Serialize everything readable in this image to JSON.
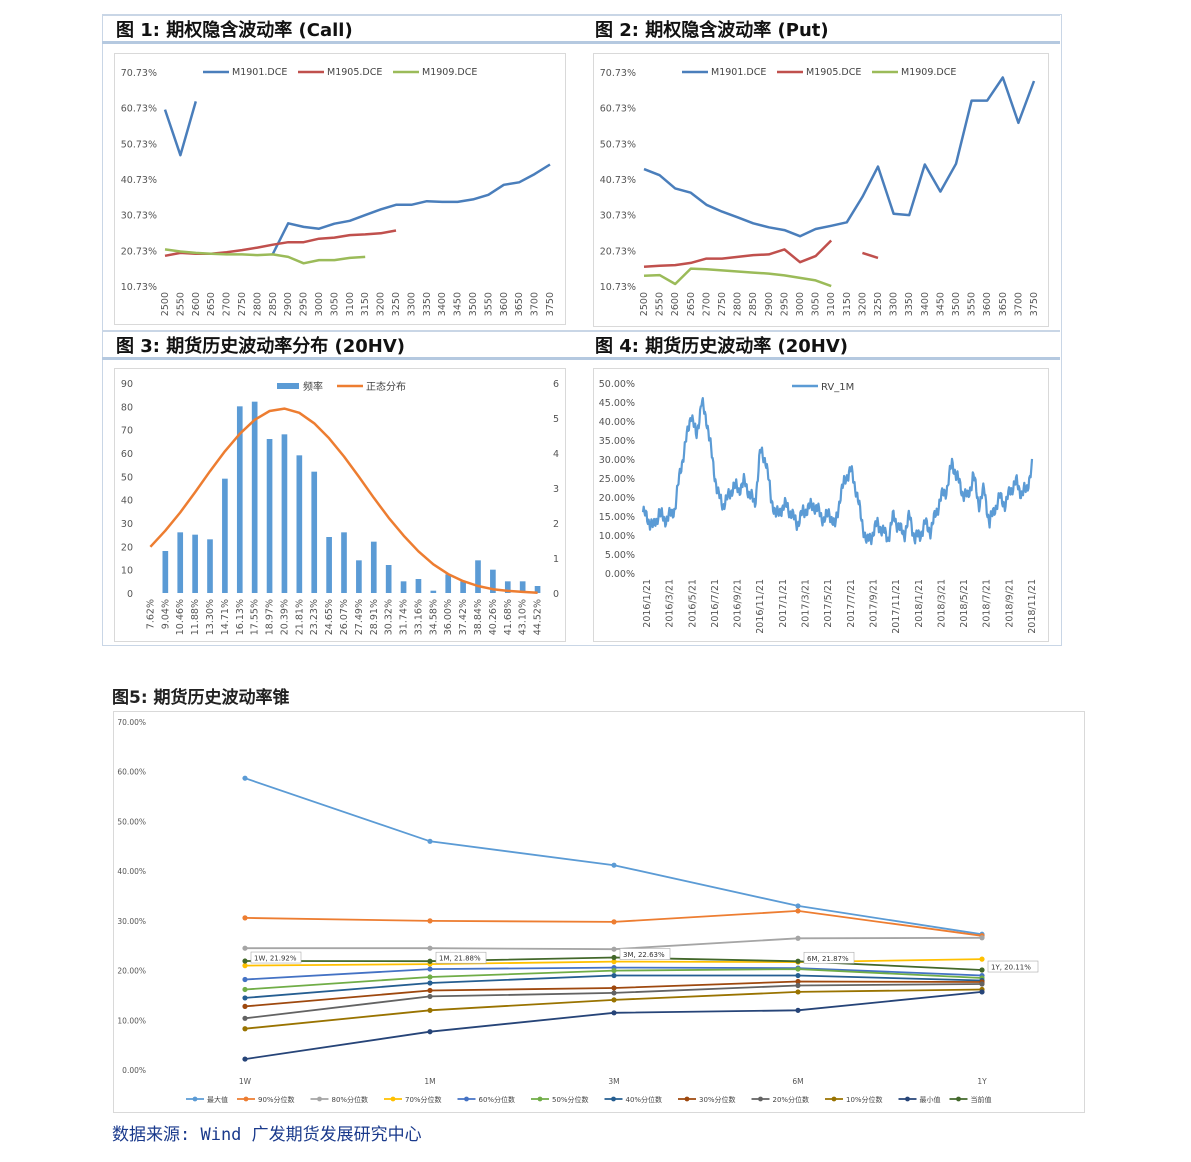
{
  "charts": [
    {
      "title": "图 1: 期权隐含波动率 (Call)",
      "chart_data": {
        "type": "line",
        "x": [
          2500,
          2550,
          2600,
          2650,
          2700,
          2750,
          2800,
          2850,
          2900,
          2950,
          3000,
          3050,
          3100,
          3150,
          3200,
          3250,
          3300,
          3350,
          3400,
          3450,
          3500,
          3550,
          3600,
          3650,
          3700,
          3750
        ],
        "y_ticks": [
          "10.73%",
          "20.73%",
          "30.73%",
          "40.73%",
          "50.73%",
          "60.73%",
          "70.73%"
        ],
        "ylim": [
          10.73,
          70.73
        ],
        "series": [
          {
            "name": "M1901.DCE",
            "color": "#4a7ebb",
            "values": [
              60.2,
              47.4,
              62.5,
              null,
              null,
              null,
              null,
              19.7,
              28.3,
              27.3,
              26.8,
              28.2,
              29.0,
              30.6,
              32.2,
              33.5,
              33.5,
              34.5,
              34.3,
              34.3,
              35.0,
              36.3,
              39.1,
              39.8,
              42.1,
              44.8
            ]
          },
          {
            "name": "M1905.DCE",
            "color": "#c0504d",
            "values": [
              19.2,
              20.0,
              19.8,
              19.8,
              20.2,
              20.8,
              21.5,
              22.3,
              23.0,
              23.0,
              24.0,
              24.3,
              25.0,
              25.2,
              25.5,
              26.3,
              null,
              null,
              null,
              null,
              null,
              null,
              null,
              null,
              null,
              null
            ]
          },
          {
            "name": "M1909.DCE",
            "color": "#9bbb59",
            "values": [
              21.0,
              20.4,
              20.0,
              19.8,
              19.6,
              19.6,
              19.4,
              19.6,
              18.9,
              17.1,
              18.0,
              18.0,
              18.6,
              18.9,
              null,
              null,
              null,
              null,
              null,
              null,
              null,
              null,
              null,
              null,
              null,
              null
            ]
          }
        ]
      }
    },
    {
      "title": "图 2: 期权隐含波动率 (Put)",
      "chart_data": {
        "type": "line",
        "x": [
          2500,
          2550,
          2600,
          2650,
          2700,
          2750,
          2800,
          2850,
          2900,
          2950,
          3000,
          3050,
          3100,
          3150,
          3200,
          3250,
          3300,
          3350,
          3400,
          3450,
          3500,
          3550,
          3600,
          3650,
          3700,
          3750
        ],
        "y_ticks": [
          "10.73%",
          "20.73%",
          "30.73%",
          "40.73%",
          "50.73%",
          "60.73%",
          "70.73%"
        ],
        "ylim": [
          10.73,
          70.73
        ],
        "series": [
          {
            "name": "M1901.DCE",
            "color": "#4a7ebb",
            "values": [
              43.5,
              41.8,
              38.1,
              36.9,
              33.5,
              31.6,
              30.0,
              28.3,
              27.2,
              26.4,
              24.7,
              26.7,
              27.6,
              28.6,
              35.7,
              44.2,
              31.0,
              30.6,
              44.8,
              37.2,
              45.0,
              62.7,
              62.7,
              69.2,
              56.5,
              68.2
            ]
          },
          {
            "name": "M1905.DCE",
            "color": "#c0504d",
            "values": [
              16.1,
              16.4,
              16.6,
              17.2,
              18.4,
              18.4,
              18.9,
              19.4,
              19.6,
              21.0,
              17.4,
              19.1,
              23.5,
              null,
              20.0,
              18.6,
              null,
              null,
              null,
              null,
              null,
              null,
              null,
              null,
              null,
              null
            ]
          },
          {
            "name": "M1909.DCE",
            "color": "#9bbb59",
            "values": [
              13.6,
              13.8,
              11.3,
              15.6,
              15.4,
              15.1,
              14.8,
              14.5,
              14.2,
              13.7,
              13.0,
              12.3,
              10.7,
              null,
              null,
              null,
              null,
              null,
              null,
              null,
              null,
              null,
              null,
              null,
              null,
              null
            ]
          }
        ]
      }
    },
    {
      "title": "图 3: 期货历史波动率分布 (20HV)",
      "chart_data": {
        "type": "bar",
        "categories": [
          "7.62%",
          "9.04%",
          "10.46%",
          "11.88%",
          "13.30%",
          "14.71%",
          "16.13%",
          "17.55%",
          "18.97%",
          "20.39%",
          "21.81%",
          "23.23%",
          "24.65%",
          "26.07%",
          "27.49%",
          "28.91%",
          "30.32%",
          "31.74%",
          "33.16%",
          "34.58%",
          "36.00%",
          "37.42%",
          "38.84%",
          "40.26%",
          "41.68%",
          "43.10%",
          "44.52%"
        ],
        "series": [
          {
            "name": "频率",
            "color": "#5b9bd5",
            "axis": "left",
            "values": [
              null,
              18,
              26,
              25,
              23,
              49,
              80,
              82,
              66,
              68,
              59,
              52,
              24,
              26,
              14,
              22,
              12,
              5,
              6,
              1,
              8,
              5,
              14,
              10,
              5,
              5,
              3
            ]
          },
          {
            "name": "正态分布",
            "color": "#ed7d31",
            "axis": "right",
            "values": [
              1.32,
              1.78,
              2.3,
              2.88,
              3.48,
              4.05,
              4.55,
              4.95,
              5.2,
              5.27,
              5.15,
              4.85,
              4.42,
              3.9,
              3.32,
              2.72,
              2.15,
              1.64,
              1.19,
              0.82,
              0.54,
              0.34,
              0.2,
              0.11,
              0.06,
              0.03,
              0.01
            ]
          }
        ],
        "ylim_left": [
          0,
          90
        ],
        "ylim_right": [
          0,
          6
        ],
        "y_ticks_left": [
          "0",
          "10",
          "20",
          "30",
          "40",
          "50",
          "60",
          "70",
          "80",
          "90"
        ],
        "y_ticks_right": [
          "0",
          "1",
          "2",
          "3",
          "4",
          "5",
          "6"
        ]
      }
    },
    {
      "title": "图 4: 期货历史波动率 (20HV)",
      "chart_data": {
        "type": "line",
        "x_ticks": [
          "2016/1/21",
          "2016/3/21",
          "2016/5/21",
          "2016/7/21",
          "2016/9/21",
          "2016/11/21",
          "2017/1/21",
          "2017/3/21",
          "2017/5/21",
          "2017/7/21",
          "2017/9/21",
          "2017/11/21",
          "2018/1/21",
          "2018/3/21",
          "2018/5/21",
          "2018/7/21",
          "2018/9/21",
          "2018/11/21"
        ],
        "y_ticks": [
          "0.00%",
          "5.00%",
          "10.00%",
          "15.00%",
          "20.00%",
          "25.00%",
          "30.00%",
          "35.00%",
          "40.00%",
          "45.00%",
          "50.00%"
        ],
        "ylim": [
          0,
          50
        ],
        "series": [
          {
            "name": "RV_1M",
            "color": "#5b9bd5",
            "values": [
              16,
              14,
              12,
              16,
              14,
              15,
              17,
              27,
              34,
              42,
              36,
              45,
              40,
              30,
              21,
              18,
              20,
              23,
              22,
              24,
              21,
              18,
              32,
              30,
              20,
              15,
              17,
              18,
              15,
              13,
              16,
              17,
              18,
              16,
              14,
              16,
              12,
              20,
              25,
              27,
              22,
              14,
              8,
              10,
              13,
              11,
              9,
              15,
              12,
              10,
              15,
              9,
              10,
              13,
              11,
              16,
              20,
              22,
              29,
              25,
              21,
              20,
              26,
              18,
              22,
              13,
              17,
              20,
              18,
              22,
              24,
              21,
              22,
              28
            ]
          }
        ]
      }
    },
    {
      "title": "图5: 期货历史波动率锥",
      "chart_data": {
        "type": "line",
        "categories": [
          "1W",
          "1M",
          "3M",
          "6M",
          "1Y"
        ],
        "y_ticks": [
          "0.00%",
          "10.00%",
          "20.00%",
          "30.00%",
          "40.00%",
          "50.00%",
          "60.00%",
          "70.00%"
        ],
        "ylim": [
          0,
          70
        ],
        "series": [
          {
            "name": "最大值",
            "color": "#5b9bd5",
            "values": [
              58.7,
              46.0,
              41.2,
              33.0,
              27.3
            ]
          },
          {
            "name": "90%分位数",
            "color": "#ed7d31",
            "values": [
              30.6,
              30.0,
              29.8,
              32.0,
              27.0
            ]
          },
          {
            "name": "80%分位数",
            "color": "#a5a5a5",
            "values": [
              24.5,
              24.5,
              24.3,
              26.5,
              26.6
            ]
          },
          {
            "name": "70%分位数",
            "color": "#ffc000",
            "values": [
              21.0,
              21.3,
              21.8,
              21.7,
              22.3
            ]
          },
          {
            "name": "60%分位数",
            "color": "#4472c4",
            "values": [
              18.2,
              20.3,
              20.6,
              20.5,
              19.0
            ]
          },
          {
            "name": "50%分位数",
            "color": "#70ad47",
            "values": [
              16.2,
              18.7,
              20.0,
              20.3,
              18.5
            ]
          },
          {
            "name": "40%分位数",
            "color": "#255e91",
            "values": [
              14.5,
              17.5,
              19.0,
              19.0,
              18.0
            ]
          },
          {
            "name": "30%分位数",
            "color": "#9e480e",
            "values": [
              12.8,
              16.0,
              16.5,
              17.8,
              17.7
            ]
          },
          {
            "name": "20%分位数",
            "color": "#636363",
            "values": [
              10.4,
              14.8,
              15.5,
              17.0,
              17.3
            ]
          },
          {
            "name": "10%分位数",
            "color": "#997300",
            "values": [
              8.3,
              12.0,
              14.1,
              15.7,
              16.2
            ]
          },
          {
            "name": "最小值",
            "color": "#264478",
            "values": [
              2.2,
              7.7,
              11.5,
              12.0,
              15.7
            ]
          },
          {
            "name": "当前值",
            "color": "#43682b",
            "values": [
              21.92,
              21.88,
              22.63,
              21.87,
              20.11
            ]
          }
        ],
        "annotations": [
          "1W, 21.92%",
          "1M, 21.88%",
          "3M, 22.63%",
          "6M, 21.87%",
          "1Y, 20.11%"
        ]
      }
    }
  ],
  "source": "数据来源: Wind 广发期货发展研究中心"
}
